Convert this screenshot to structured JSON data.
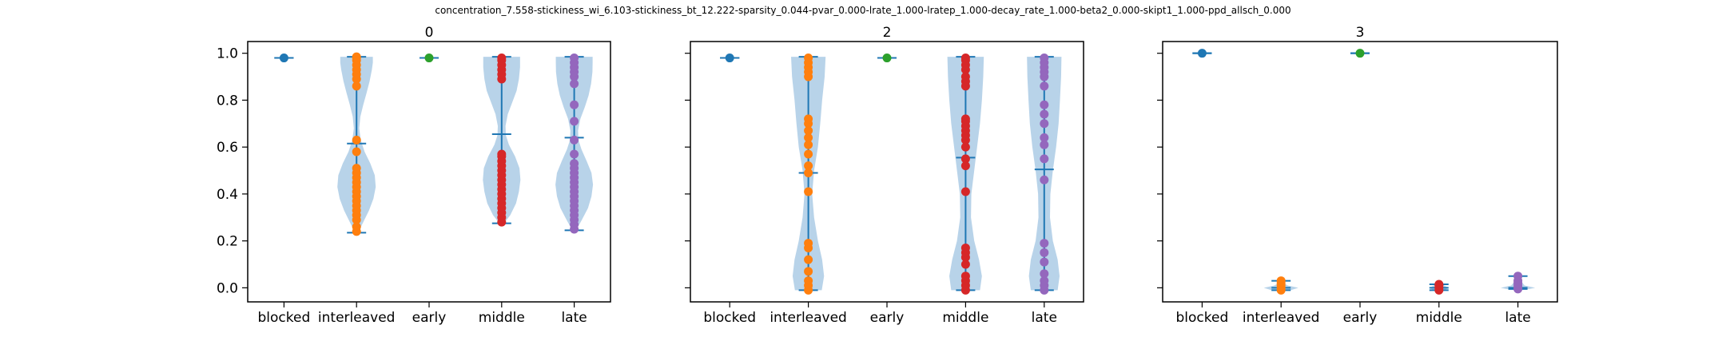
{
  "figure": {
    "title": "concentration_7.558-stickiness_wi_6.103-stickiness_bt_12.222-sparsity_0.044-pvar_0.000-lrate_1.000-lratep_1.000-decay_rate_1.000-beta2_0.000-skipt1_1.000-ppd_allsch_0.000"
  },
  "colors": {
    "violin": "#a6c8e4",
    "lines": "#1f77b4",
    "blocked": "#1f77b4",
    "interleaved": "#ff7f0e",
    "early": "#2ca02c",
    "middle": "#d62728",
    "late": "#9467bd"
  },
  "chart_data": [
    {
      "type": "violin",
      "title": "0",
      "categories": [
        "blocked",
        "interleaved",
        "early",
        "middle",
        "late"
      ],
      "ylim": [
        -0.06,
        1.05
      ],
      "yticks": [
        0.0,
        0.2,
        0.4,
        0.6,
        0.8,
        1.0
      ],
      "ytick_labels": [
        "0.0",
        "0.2",
        "0.4",
        "0.6",
        "0.8",
        "1.0"
      ],
      "show_ytick_labels": true,
      "groups": [
        {
          "name": "blocked",
          "min": 0.98,
          "max": 0.98,
          "mean": 0.98,
          "density": [],
          "points": [
            0.98
          ]
        },
        {
          "name": "interleaved",
          "min": 0.235,
          "max": 0.985,
          "mean": 0.615,
          "density": [
            [
              0.235,
              0.08
            ],
            [
              0.28,
              0.35
            ],
            [
              0.33,
              0.65
            ],
            [
              0.38,
              0.88
            ],
            [
              0.43,
              1.0
            ],
            [
              0.48,
              0.95
            ],
            [
              0.53,
              0.72
            ],
            [
              0.58,
              0.42
            ],
            [
              0.63,
              0.22
            ],
            [
              0.68,
              0.14
            ],
            [
              0.73,
              0.2
            ],
            [
              0.78,
              0.35
            ],
            [
              0.83,
              0.52
            ],
            [
              0.88,
              0.68
            ],
            [
              0.93,
              0.8
            ],
            [
              0.96,
              0.85
            ],
            [
              0.985,
              0.85
            ]
          ],
          "points": [
            0.24,
            0.26,
            0.29,
            0.31,
            0.33,
            0.35,
            0.37,
            0.39,
            0.41,
            0.43,
            0.45,
            0.47,
            0.49,
            0.51,
            0.58,
            0.63,
            0.86,
            0.89,
            0.91,
            0.93,
            0.95,
            0.97,
            0.98,
            0.985
          ]
        },
        {
          "name": "early",
          "min": 0.98,
          "max": 0.98,
          "mean": 0.98,
          "density": [],
          "points": [
            0.98
          ]
        },
        {
          "name": "middle",
          "min": 0.275,
          "max": 0.985,
          "mean": 0.655,
          "density": [
            [
              0.275,
              0.12
            ],
            [
              0.31,
              0.45
            ],
            [
              0.36,
              0.75
            ],
            [
              0.41,
              0.9
            ],
            [
              0.46,
              0.98
            ],
            [
              0.51,
              0.93
            ],
            [
              0.56,
              0.7
            ],
            [
              0.61,
              0.38
            ],
            [
              0.65,
              0.22
            ],
            [
              0.69,
              0.2
            ],
            [
              0.74,
              0.32
            ],
            [
              0.79,
              0.55
            ],
            [
              0.84,
              0.78
            ],
            [
              0.89,
              0.9
            ],
            [
              0.94,
              0.96
            ],
            [
              0.985,
              0.96
            ]
          ],
          "points": [
            0.28,
            0.3,
            0.32,
            0.34,
            0.36,
            0.38,
            0.4,
            0.42,
            0.44,
            0.46,
            0.48,
            0.5,
            0.52,
            0.54,
            0.56,
            0.57,
            0.89,
            0.91,
            0.93,
            0.95,
            0.97,
            0.98
          ]
        },
        {
          "name": "late",
          "min": 0.245,
          "max": 0.985,
          "mean": 0.64,
          "density": [
            [
              0.245,
              0.1
            ],
            [
              0.29,
              0.4
            ],
            [
              0.34,
              0.72
            ],
            [
              0.39,
              0.9
            ],
            [
              0.44,
              0.98
            ],
            [
              0.49,
              0.9
            ],
            [
              0.54,
              0.65
            ],
            [
              0.59,
              0.38
            ],
            [
              0.63,
              0.22
            ],
            [
              0.67,
              0.2
            ],
            [
              0.72,
              0.32
            ],
            [
              0.77,
              0.55
            ],
            [
              0.82,
              0.75
            ],
            [
              0.87,
              0.88
            ],
            [
              0.92,
              0.95
            ],
            [
              0.96,
              0.96
            ],
            [
              0.985,
              0.96
            ]
          ],
          "points": [
            0.25,
            0.27,
            0.29,
            0.31,
            0.33,
            0.35,
            0.37,
            0.39,
            0.41,
            0.43,
            0.45,
            0.47,
            0.49,
            0.51,
            0.53,
            0.57,
            0.63,
            0.71,
            0.78,
            0.87,
            0.9,
            0.92,
            0.94,
            0.96,
            0.98
          ]
        }
      ]
    },
    {
      "type": "violin",
      "title": "2",
      "categories": [
        "blocked",
        "interleaved",
        "early",
        "middle",
        "late"
      ],
      "ylim": [
        -0.06,
        1.05
      ],
      "yticks": [
        0.0,
        0.2,
        0.4,
        0.6,
        0.8,
        1.0
      ],
      "ytick_labels": [
        "0.0",
        "0.2",
        "0.4",
        "0.6",
        "0.8",
        "1.0"
      ],
      "show_ytick_labels": false,
      "groups": [
        {
          "name": "blocked",
          "min": 0.98,
          "max": 0.98,
          "mean": 0.98,
          "density": [],
          "points": [
            0.98
          ]
        },
        {
          "name": "interleaved",
          "min": -0.01,
          "max": 0.985,
          "mean": 0.49,
          "density": [
            [
              -0.01,
              0.7
            ],
            [
              0.05,
              0.82
            ],
            [
              0.12,
              0.72
            ],
            [
              0.2,
              0.5
            ],
            [
              0.3,
              0.3
            ],
            [
              0.4,
              0.2
            ],
            [
              0.5,
              0.3
            ],
            [
              0.6,
              0.5
            ],
            [
              0.7,
              0.62
            ],
            [
              0.8,
              0.72
            ],
            [
              0.9,
              0.85
            ],
            [
              0.985,
              0.9
            ]
          ],
          "points": [
            -0.01,
            0.01,
            0.03,
            0.07,
            0.12,
            0.17,
            0.19,
            0.41,
            0.49,
            0.52,
            0.57,
            0.61,
            0.64,
            0.67,
            0.7,
            0.72,
            0.9,
            0.92,
            0.94,
            0.96,
            0.98
          ]
        },
        {
          "name": "early",
          "min": 0.98,
          "max": 0.98,
          "mean": 0.98,
          "density": [],
          "points": [
            0.98
          ]
        },
        {
          "name": "middle",
          "min": -0.01,
          "max": 0.985,
          "mean": 0.555,
          "density": [
            [
              -0.01,
              0.75
            ],
            [
              0.05,
              0.85
            ],
            [
              0.12,
              0.7
            ],
            [
              0.2,
              0.45
            ],
            [
              0.3,
              0.28
            ],
            [
              0.4,
              0.3
            ],
            [
              0.5,
              0.45
            ],
            [
              0.6,
              0.6
            ],
            [
              0.7,
              0.75
            ],
            [
              0.8,
              0.85
            ],
            [
              0.9,
              0.92
            ],
            [
              0.985,
              0.95
            ]
          ],
          "points": [
            -0.01,
            0.01,
            0.03,
            0.05,
            0.1,
            0.13,
            0.15,
            0.17,
            0.41,
            0.52,
            0.55,
            0.6,
            0.63,
            0.65,
            0.67,
            0.69,
            0.71,
            0.72,
            0.86,
            0.88,
            0.9,
            0.93,
            0.95,
            0.97,
            0.98
          ]
        },
        {
          "name": "late",
          "min": -0.01,
          "max": 0.985,
          "mean": 0.505,
          "density": [
            [
              -0.01,
              0.7
            ],
            [
              0.05,
              0.8
            ],
            [
              0.12,
              0.7
            ],
            [
              0.2,
              0.45
            ],
            [
              0.3,
              0.3
            ],
            [
              0.4,
              0.32
            ],
            [
              0.5,
              0.45
            ],
            [
              0.6,
              0.62
            ],
            [
              0.7,
              0.75
            ],
            [
              0.8,
              0.82
            ],
            [
              0.9,
              0.88
            ],
            [
              0.985,
              0.9
            ]
          ],
          "points": [
            -0.01,
            0.01,
            0.03,
            0.06,
            0.11,
            0.15,
            0.19,
            0.46,
            0.55,
            0.61,
            0.64,
            0.7,
            0.74,
            0.78,
            0.86,
            0.9,
            0.92,
            0.94,
            0.96,
            0.98
          ]
        }
      ]
    },
    {
      "type": "violin",
      "title": "3",
      "categories": [
        "blocked",
        "interleaved",
        "early",
        "middle",
        "late"
      ],
      "ylim": [
        -0.06,
        1.05
      ],
      "yticks": [
        0.0,
        0.2,
        0.4,
        0.6,
        0.8,
        1.0
      ],
      "ytick_labels": [
        "0.0",
        "0.2",
        "0.4",
        "0.6",
        "0.8",
        "1.0"
      ],
      "show_ytick_labels": false,
      "groups": [
        {
          "name": "blocked",
          "min": 1.0,
          "max": 1.0,
          "mean": 1.0,
          "density": [],
          "points": [
            1.0
          ]
        },
        {
          "name": "interleaved",
          "min": -0.01,
          "max": 0.03,
          "mean": 0.0,
          "density": [
            [
              -0.01,
              0.5
            ],
            [
              0.0,
              0.9
            ],
            [
              0.01,
              0.35
            ],
            [
              0.02,
              0.15
            ],
            [
              0.03,
              0.08
            ]
          ],
          "points": [
            -0.01,
            0.0,
            0.01,
            0.02,
            0.03
          ]
        },
        {
          "name": "early",
          "min": 1.0,
          "max": 1.0,
          "mean": 1.0,
          "density": [],
          "points": [
            1.0
          ]
        },
        {
          "name": "middle",
          "min": -0.01,
          "max": 0.015,
          "mean": 0.0,
          "density": [
            [
              -0.01,
              0.3
            ],
            [
              0.0,
              0.5
            ],
            [
              0.015,
              0.15
            ]
          ],
          "points": [
            -0.01,
            0.0,
            0.01,
            0.015
          ]
        },
        {
          "name": "late",
          "min": -0.005,
          "max": 0.05,
          "mean": 0.0,
          "density": [
            [
              -0.005,
              0.6
            ],
            [
              0.0,
              0.9
            ],
            [
              0.01,
              0.35
            ],
            [
              0.03,
              0.15
            ],
            [
              0.05,
              0.08
            ]
          ],
          "points": [
            -0.005,
            0.0,
            0.01,
            0.02,
            0.03,
            0.05
          ]
        }
      ]
    }
  ]
}
